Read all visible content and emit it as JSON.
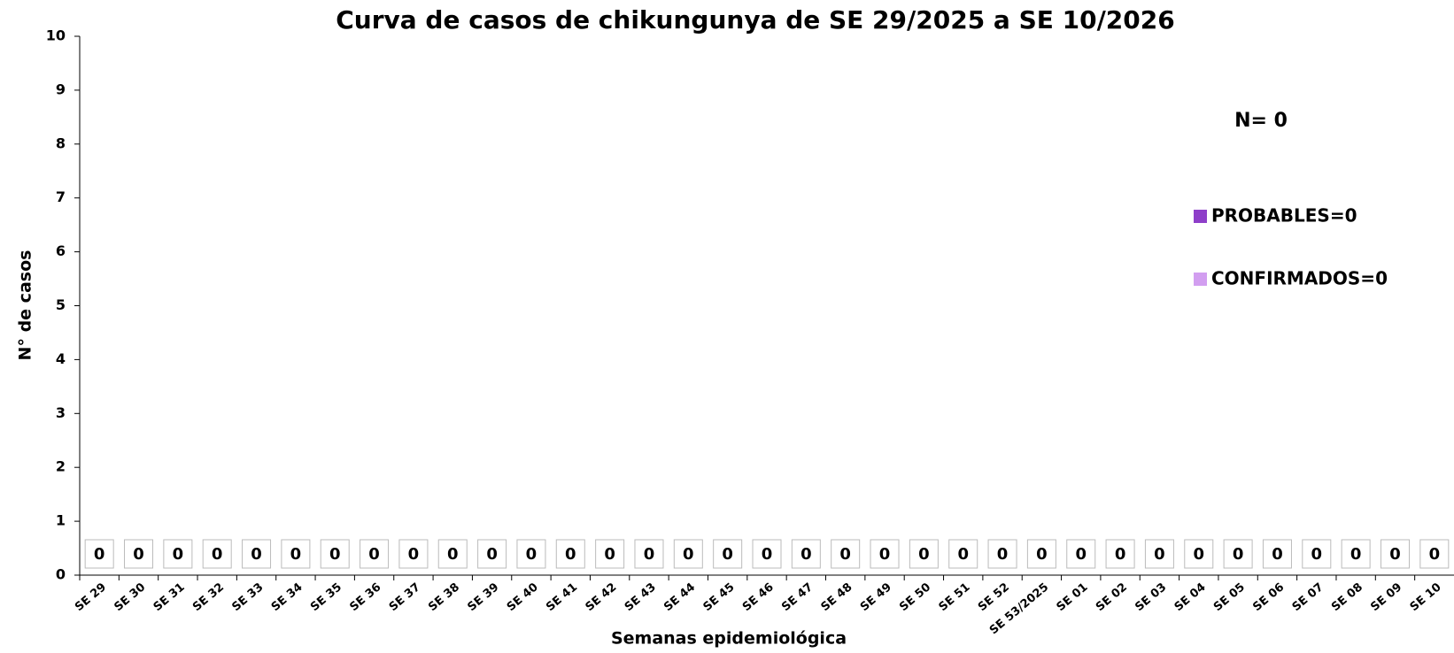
{
  "chart_data": {
    "type": "stacked_bar",
    "title": "Curva de casos de chikungunya de SE 29/2025 a SE 10/2026",
    "annotation": "N= 0",
    "x_label": "Semanas epidemiológica",
    "y_label": "N° de casos",
    "categories": [
      "SE 29",
      "SE 30",
      "SE 31",
      "SE 32",
      "SE 33",
      "SE 34",
      "SE 35",
      "SE 36",
      "SE 37",
      "SE 38",
      "SE 39",
      "SE 40",
      "SE 41",
      "SE 42",
      "SE 43",
      "SE 44",
      "SE 45",
      "SE 46",
      "SE 47",
      "SE 48",
      "SE 49",
      "SE 50",
      "SE 51",
      "SE 52",
      "SE 53/2025",
      "SE 01",
      "SE 02",
      "SE 03",
      "SE 04",
      "SE 05",
      "SE 06",
      "SE 07",
      "SE 08",
      "SE 09",
      "SE 10"
    ],
    "series": [
      {
        "name": "PROBABLES=0",
        "color": "#8e3fc9",
        "values": [
          0,
          0,
          0,
          0,
          0,
          0,
          0,
          0,
          0,
          0,
          0,
          0,
          0,
          0,
          0,
          0,
          0,
          0,
          0,
          0,
          0,
          0,
          0,
          0,
          0,
          0,
          0,
          0,
          0,
          0,
          0,
          0,
          0,
          0,
          0
        ]
      },
      {
        "name": "CONFIRMADOS=0",
        "color": "#d29ef0",
        "values": [
          0,
          0,
          0,
          0,
          0,
          0,
          0,
          0,
          0,
          0,
          0,
          0,
          0,
          0,
          0,
          0,
          0,
          0,
          0,
          0,
          0,
          0,
          0,
          0,
          0,
          0,
          0,
          0,
          0,
          0,
          0,
          0,
          0,
          0,
          0
        ]
      }
    ],
    "ylim": [
      0,
      10
    ],
    "yticks": [
      0,
      1,
      2,
      3,
      4,
      5,
      6,
      7,
      8,
      9,
      10
    ],
    "grid": false
  }
}
